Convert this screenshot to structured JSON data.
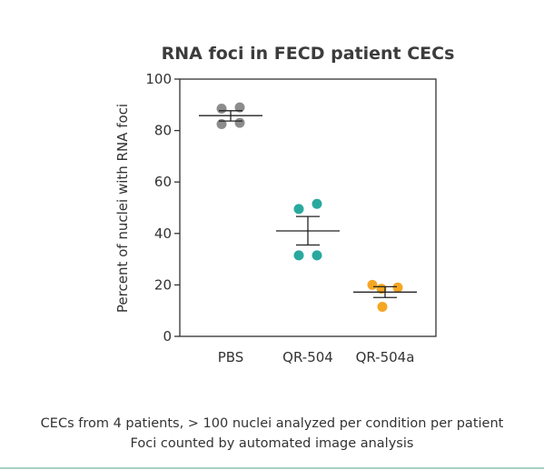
{
  "chart_data": {
    "type": "scatter",
    "title": "RNA foci in FECD patient CECs",
    "xlabel": "",
    "ylabel": "Percent of nuclei with RNA foci",
    "ylim": [
      0,
      100
    ],
    "yticks": [
      0,
      20,
      40,
      60,
      80,
      100
    ],
    "categories": [
      "PBS",
      "QR-504",
      "QR-504a"
    ],
    "grid": false,
    "legend": "none",
    "series": [
      {
        "category": "PBS",
        "color": "#8c8c8c",
        "points": [
          88.5,
          89,
          82.5,
          83
        ],
        "mean": 85.8,
        "sem_low": 83.7,
        "sem_high": 87.7
      },
      {
        "category": "QR-504",
        "color": "#29a99e",
        "points": [
          49.5,
          51.5,
          31.5,
          31.5
        ],
        "mean": 41.0,
        "sem_low": 35.5,
        "sem_high": 46.6
      },
      {
        "category": "QR-504a",
        "color": "#f5a623",
        "points": [
          20,
          18.5,
          19,
          11.5
        ],
        "mean": 17.2,
        "sem_low": 15.1,
        "sem_high": 19.3
      }
    ]
  },
  "caption": {
    "line1": "CECs from 4 patients, > 100 nuclei analyzed per condition per patient",
    "line2": "Foci counted by automated image analysis"
  }
}
